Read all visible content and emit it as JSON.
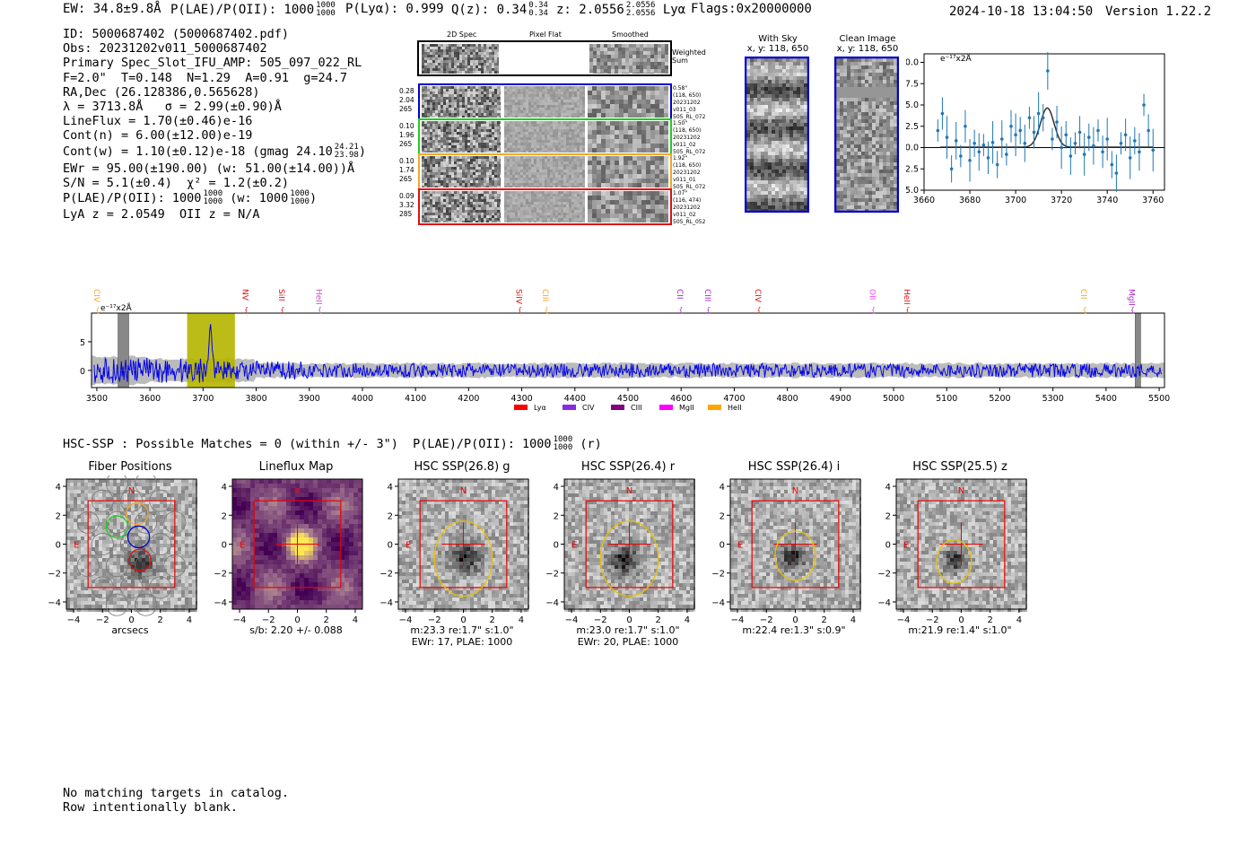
{
  "header": {
    "ew": "EW: 34.8±9.8Å",
    "plae_label": "P(LAE)/P(OII): 1000",
    "plae_frac_top": "1000",
    "plae_frac_bot": "1000",
    "plya": "P(Lyα): 0.999",
    "qz_label": "Q(z): 0.34",
    "qz_frac_top": "0.34",
    "qz_frac_bot": "0.34",
    "z_label": "z: 2.0556",
    "z_frac_top": "2.0556",
    "z_frac_bot": "2.0556",
    "z_line": "Lyα",
    "flags": "Flags:0x20000000",
    "timestamp": "2024-10-18 13:04:50",
    "version": "Version 1.22.2"
  },
  "info": {
    "id": "ID: 5000687402 (5000687402.pdf)",
    "obs": "Obs: 20231202v011_5000687402",
    "spec": "Primary Spec_Slot_IFU_AMP: 505_097_022_RL",
    "fit": "F=2.0\"  T=0.148  N=1.29  A=0.91  g=24.7",
    "radec": "RA,Dec (26.128386,0.565628)",
    "lambda": "λ = 3713.8Å   σ = 2.99(±0.90)Å",
    "lineflux": "LineFlux = 1.70(±0.46)e-16",
    "contn": "Cont(n) = 6.00(±12.00)e-19",
    "contw": "Cont(w) = 1.10(±0.12)e-18 (gmag 24.10",
    "contw_frac_top": "24.21",
    "contw_frac_bot": "23.98",
    "contw_end": ")",
    "ewr": "EWr = 95.00(±190.00) (w: 51.00(±14.00))Å",
    "sn": "S/N = 5.1(±0.4)  χ² = 1.2(±0.2)",
    "plae": "P(LAE)/P(OII): 1000",
    "plae_frac_top": "1000",
    "plae_frac_bot": "1000",
    "plae_w": "(w: 1000",
    "plae_w_top": "1000",
    "plae_w_bot": "1000",
    "plae_w_end": ")",
    "lya": "LyA z = 2.0549  OII z = N/A"
  },
  "cutouts": {
    "col_2d": "2D Spec",
    "col_flat": "Pixel Flat",
    "col_smooth": "Smoothed",
    "weighted": "Weighted Sum",
    "rows": [
      {
        "left": [
          "0.28",
          "2.04",
          "265"
        ],
        "right": [
          "0.58\"",
          "(118, 650)",
          "20231202",
          "v011_03",
          "505_RL_072"
        ],
        "color": "#0000cc"
      },
      {
        "left": [
          "0.10",
          "1.96",
          "265"
        ],
        "right": [
          "1.50\"",
          "(118, 650)",
          "20231202",
          "v011_02",
          "505_RL_072"
        ],
        "color": "#22cc22"
      },
      {
        "left": [
          "0.10",
          "1.74",
          "265"
        ],
        "right": [
          "1.92\"",
          "(118, 650)",
          "20231202",
          "v011_01",
          "505_RL_072"
        ],
        "color": "#f5a623"
      },
      {
        "left": [
          "0.09",
          "3.32",
          "285"
        ],
        "right": [
          "1.07\"",
          "(116, 474)",
          "20231202",
          "v011_02",
          "505_RL_052"
        ],
        "color": "#dd1111"
      }
    ]
  },
  "sky": {
    "with_sky": "With Sky",
    "with_sky_xy": "x, y: 118, 650",
    "clean": "Clean Image",
    "clean_xy": "x, y: 118, 650"
  },
  "zoom_chart": {
    "unit_label": "e⁻¹⁷x2Å"
  },
  "chart_data": [
    {
      "type": "scatter",
      "title": "",
      "ylabel": "e-17x2Å",
      "xlim": [
        3660,
        3765
      ],
      "ylim": [
        -5.0,
        11.0
      ],
      "xticks": [
        3660,
        3680,
        3700,
        3720,
        3740,
        3760
      ],
      "yticks": [
        -5.0,
        -2.5,
        0.0,
        2.5,
        5.0,
        7.5,
        10.0
      ],
      "x": [
        3666,
        3668,
        3670,
        3672,
        3674,
        3676,
        3678,
        3680,
        3682,
        3684,
        3686,
        3688,
        3690,
        3692,
        3694,
        3696,
        3698,
        3700,
        3702,
        3704,
        3706,
        3708,
        3710,
        3712,
        3714,
        3716,
        3718,
        3720,
        3722,
        3724,
        3726,
        3728,
        3730,
        3732,
        3734,
        3736,
        3738,
        3740,
        3742,
        3744,
        3746,
        3748,
        3750,
        3752,
        3754,
        3756,
        3758,
        3760
      ],
      "y": [
        2.0,
        4.0,
        1.2,
        -2.5,
        0.8,
        -1.0,
        2.5,
        -1.5,
        0.5,
        -0.5,
        0.3,
        -1.2,
        0.6,
        -2.0,
        1.0,
        -0.8,
        2.5,
        1.5,
        2.0,
        0.5,
        3.5,
        1.8,
        4.0,
        3.5,
        9.0,
        1.0,
        3.0,
        0.0,
        1.5,
        -1.0,
        0.5,
        1.8,
        -0.8,
        1.2,
        0.2,
        2.0,
        -0.5,
        1.0,
        -2.0,
        -3.0,
        0.5,
        1.5,
        -1.2,
        0.8,
        -0.5,
        5.0,
        2.0,
        -0.3
      ],
      "fit": {
        "center": 3713.8,
        "sigma": 2.99,
        "amplitude": 4.6,
        "continuum": 0.05
      }
    },
    {
      "type": "line",
      "title": "",
      "ylabel": "e-17x2Å",
      "xlim": [
        3490,
        5510
      ],
      "ylim": [
        -3,
        10
      ],
      "xticks": [
        3500,
        3600,
        3700,
        3800,
        3900,
        4000,
        4100,
        4200,
        4300,
        4400,
        4500,
        4600,
        4700,
        4800,
        4900,
        5000,
        5100,
        5200,
        5300,
        5400,
        5500
      ],
      "yticks": [
        0,
        5
      ],
      "highlight_band": [
        3670,
        3760
      ],
      "masked_bands": [
        [
          3540,
          3560
        ],
        [
          5455,
          5465
        ]
      ],
      "emission_lines": [
        {
          "name": "CIV",
          "x": 3500,
          "color": "#f5a623"
        },
        {
          "name": "NV",
          "x": 3780,
          "color": "#dd1111"
        },
        {
          "name": "SiII",
          "x": 3848,
          "color": "#dd1111"
        },
        {
          "name": "HeII",
          "x": 3918,
          "color": "#cc44cc"
        },
        {
          "name": "SiIV",
          "x": 4295,
          "color": "#dd1111"
        },
        {
          "name": "CIII",
          "x": 4345,
          "color": "#f5a623"
        },
        {
          "name": "CII",
          "x": 4598,
          "color": "#aa22cc"
        },
        {
          "name": "CIII",
          "x": 4650,
          "color": "#aa22cc"
        },
        {
          "name": "CIV",
          "x": 4745,
          "color": "#dd1111"
        },
        {
          "name": "OII",
          "x": 4960,
          "color": "#ff44ff"
        },
        {
          "name": "HeII",
          "x": 5025,
          "color": "#dd1111"
        },
        {
          "name": "CII",
          "x": 5358,
          "color": "#f5a623"
        },
        {
          "name": "MgII",
          "x": 5448,
          "color": "#aa22cc"
        }
      ],
      "legend": [
        {
          "name": "Lyα",
          "color": "#ff0000"
        },
        {
          "name": "CIV",
          "color": "#8a2be2"
        },
        {
          "name": "CIII",
          "color": "#800080"
        },
        {
          "name": "MgII",
          "color": "#ff00ff"
        },
        {
          "name": "HeII",
          "color": "#ffa500"
        }
      ]
    }
  ],
  "hsc": {
    "line": "HSC-SSP : Possible Matches = 0 (within +/- 3\")  P(LAE)/P(OII): 1000",
    "frac_top": "1000",
    "frac_bot": "1000",
    "band": "(r)",
    "panels": [
      {
        "title": "Fiber Positions",
        "cap1": "arcsecs",
        "cap2": ""
      },
      {
        "title": "Lineflux Map",
        "cap1": "s/b: 2.20 +/- 0.088",
        "cap2": ""
      },
      {
        "title": "HSC SSP(26.8) g",
        "cap1": "m:23.3  re:1.7\"  s:1.0\"",
        "cap2": "EWr: 17, PLAE: 1000"
      },
      {
        "title": "HSC SSP(26.4) r",
        "cap1": "m:23.0  re:1.7\"  s:1.0\"",
        "cap2": "EWr: 20, PLAE: 1000"
      },
      {
        "title": "HSC SSP(26.4) i",
        "cap1": "m:22.4  re:1.3\"  s:0.9\"",
        "cap2": ""
      },
      {
        "title": "HSC SSP(25.5) z",
        "cap1": "m:21.9  re:1.4\"  s:1.0\"",
        "cap2": ""
      }
    ],
    "tick_labels": [
      "−4",
      "−2",
      "0",
      "2",
      "4"
    ],
    "north": "N",
    "east": "E"
  },
  "footer": {
    "line1": "No matching targets in catalog.",
    "line2": "Row intentionally blank."
  }
}
